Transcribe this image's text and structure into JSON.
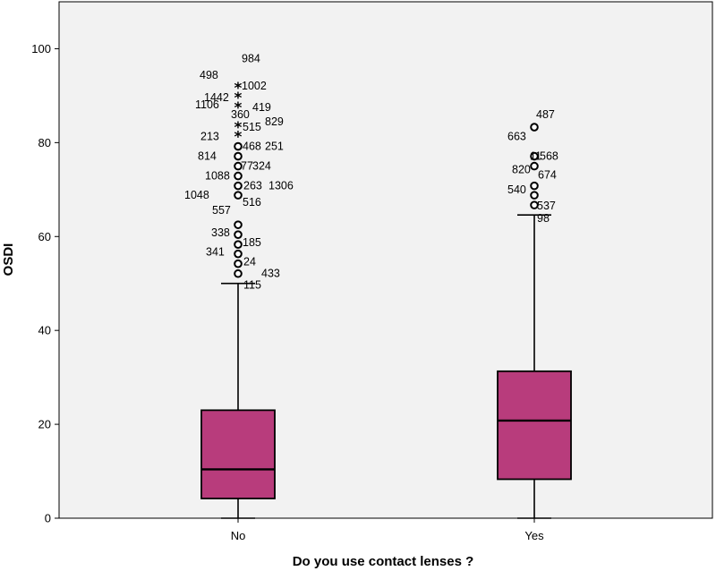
{
  "chart_data": {
    "type": "box",
    "xlabel": "Do you use contact lenses ?",
    "ylabel": "OSDI",
    "ylim": [
      0,
      110
    ],
    "yticks": [
      0,
      20,
      40,
      60,
      80,
      100
    ],
    "grid": false,
    "colors": {
      "plot_bg": "#f2f2f2",
      "box_fill": "#b83c7c",
      "line": "#000000"
    },
    "groups": [
      {
        "category": "No",
        "q1": 4.2,
        "median": 10.4,
        "q3": 23.0,
        "whisker_low": 0,
        "whisker_high": 50.0,
        "outliers": [
          {
            "label": "115",
            "value": 50.0,
            "marker": "none"
          },
          {
            "label": "433",
            "value": 52.1,
            "marker": "circle"
          },
          {
            "label": "24",
            "value": 54.2,
            "marker": "circle"
          },
          {
            "label": "341",
            "value": 56.3,
            "marker": "circle"
          },
          {
            "label": "185",
            "value": 58.3,
            "marker": "circle"
          },
          {
            "label": "338",
            "value": 60.4,
            "marker": "circle"
          },
          {
            "label": "516",
            "value": 62.5,
            "marker": "circle"
          },
          {
            "label": "557",
            "value": 62.5,
            "marker": "none"
          },
          {
            "label": "1048",
            "value": 68.8,
            "marker": "circle"
          },
          {
            "label": "1306",
            "value": 70.8,
            "marker": "circle"
          },
          {
            "label": "263",
            "value": 70.8,
            "marker": "none"
          },
          {
            "label": "1088",
            "value": 72.9,
            "marker": "circle"
          },
          {
            "label": "324",
            "value": 75.0,
            "marker": "circle"
          },
          {
            "label": "77",
            "value": 75.0,
            "marker": "none"
          },
          {
            "label": "814",
            "value": 77.1,
            "marker": "circle"
          },
          {
            "label": "251",
            "value": 79.2,
            "marker": "circle"
          },
          {
            "label": "468",
            "value": 79.2,
            "marker": "none"
          },
          {
            "label": "213",
            "value": 81.3,
            "marker": "star"
          },
          {
            "label": "515",
            "value": 83.3,
            "marker": "star"
          },
          {
            "label": "829",
            "value": 83.3,
            "marker": "none"
          },
          {
            "label": "1106",
            "value": 85.4,
            "marker": "none"
          },
          {
            "label": "360",
            "value": 87.5,
            "marker": "star"
          },
          {
            "label": "419",
            "value": 87.5,
            "marker": "none"
          },
          {
            "label": "1442",
            "value": 89.6,
            "marker": "star"
          },
          {
            "label": "1002",
            "value": 91.7,
            "marker": "star"
          },
          {
            "label": "498",
            "value": 91.7,
            "marker": "none"
          },
          {
            "label": "984",
            "value": 97.9,
            "marker": "none"
          }
        ]
      },
      {
        "category": "Yes",
        "q1": 8.3,
        "median": 20.8,
        "q3": 31.3,
        "whisker_low": 0,
        "whisker_high": 64.6,
        "outliers": [
          {
            "label": "98",
            "value": 64.6,
            "marker": "none"
          },
          {
            "label": "537",
            "value": 66.7,
            "marker": "circle"
          },
          {
            "label": "540",
            "value": 68.8,
            "marker": "circle"
          },
          {
            "label": "674",
            "value": 70.8,
            "marker": "circle"
          },
          {
            "label": "820",
            "value": 75.0,
            "marker": "circle"
          },
          {
            "label": "568",
            "value": 77.1,
            "marker": "circle"
          },
          {
            "label": "11",
            "value": 77.1,
            "marker": "none"
          },
          {
            "label": "663",
            "value": 81.3,
            "marker": "none"
          },
          {
            "label": "487",
            "value": 83.3,
            "marker": "circle"
          }
        ]
      }
    ]
  }
}
